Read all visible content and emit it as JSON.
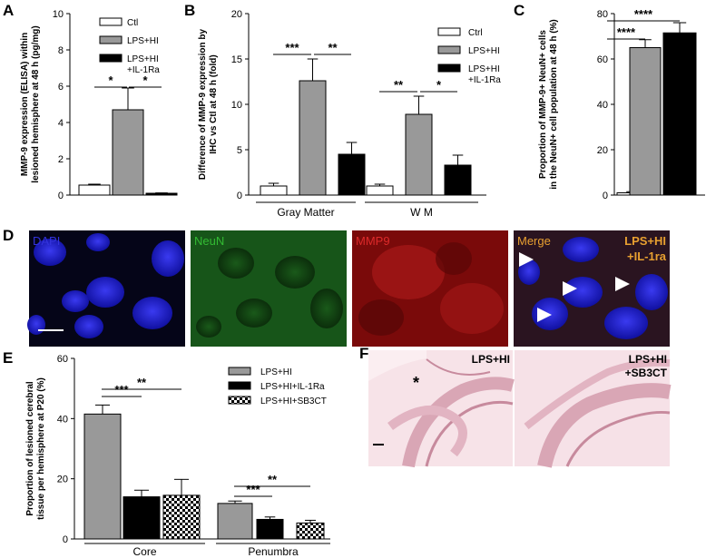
{
  "panel_labels": [
    "A",
    "B",
    "C",
    "D",
    "E",
    "F"
  ],
  "colors": {
    "ctl": "#ffffff",
    "lps_hi": "#999999",
    "il1ra": "#000000",
    "dapi": "#3333dd",
    "neun": "#33bb33",
    "mmp9": "#cc2222",
    "merge": "#e8a030",
    "he_bg": "#f5dde3"
  },
  "chart_data": [
    {
      "id": "A",
      "type": "bar",
      "ylabel": [
        "MMP-9 expression (ELISA) within",
        "lesioned hemisphere at 48 h (pg/mg)"
      ],
      "ylim": [
        0,
        10
      ],
      "yticks": [
        0,
        2,
        4,
        6,
        8,
        10
      ],
      "legend": [
        "Ctl",
        "LPS+HI",
        "LPS+HI\n+IL-1Ra"
      ],
      "series": [
        {
          "name": "Ctl",
          "value": 0.55,
          "err": 0.05
        },
        {
          "name": "LPS+HI",
          "value": 4.7,
          "err": 1.2
        },
        {
          "name": "LPS+HI\n+IL-1Ra",
          "value": 0.1,
          "err": 0.02
        }
      ],
      "significance": [
        "*",
        "*"
      ]
    },
    {
      "id": "B",
      "type": "bar",
      "ylabel": [
        "Difference of MMP-9 expression by",
        "IHC vs Ctl at 48 h (fold)"
      ],
      "ylim": [
        0,
        20
      ],
      "yticks": [
        0,
        5,
        10,
        15,
        20
      ],
      "legend": [
        "Ctrl",
        "LPS+HI",
        "LPS+HI\n+IL-1Ra"
      ],
      "categories": [
        "Gray Matter",
        "W M"
      ],
      "series": [
        {
          "name": "Ctrl",
          "values": [
            1,
            1
          ],
          "err": [
            0.3,
            0.2
          ]
        },
        {
          "name": "LPS+HI",
          "values": [
            12.6,
            8.9
          ],
          "err": [
            2.4,
            2.0
          ]
        },
        {
          "name": "LPS+HI\n+IL-1Ra",
          "values": [
            4.5,
            3.3
          ],
          "err": [
            1.3,
            1.1
          ]
        }
      ],
      "significance": [
        "***",
        "**",
        "**",
        "*"
      ]
    },
    {
      "id": "C",
      "type": "bar",
      "ylabel": [
        "Proportion of MMP-9+ NeuN+ cells",
        "in the NeuN+ cell population at 48 h (%)"
      ],
      "ylim": [
        0,
        80
      ],
      "yticks": [
        0,
        20,
        40,
        60,
        80
      ],
      "series": [
        {
          "value": 1,
          "err": 0.5
        },
        {
          "value": 65,
          "err": 3.5
        },
        {
          "value": 71.5,
          "err": 4.5
        }
      ],
      "significance": [
        "****",
        "****"
      ]
    },
    {
      "id": "E",
      "type": "bar",
      "ylabel": [
        "Proportion of lesioned cerebral",
        "tissue per hemisphere at P20 (%)"
      ],
      "ylim": [
        0,
        60
      ],
      "yticks": [
        0,
        20,
        40,
        60
      ],
      "legend": [
        "LPS+HI",
        "LPS+HI+IL-1Ra",
        "LPS+HI+SB3CT"
      ],
      "categories": [
        "Core",
        "Penumbra"
      ],
      "series": [
        {
          "name": "LPS+HI",
          "values": [
            41.5,
            11.8
          ],
          "err": [
            3.0,
            0.8
          ]
        },
        {
          "name": "LPS+HI+IL-1Ra",
          "values": [
            14,
            6.5
          ],
          "err": [
            2.2,
            0.8
          ]
        },
        {
          "name": "LPS+HI+SB3CT",
          "values": [
            14.5,
            5.3
          ],
          "err": [
            5.3,
            0.9
          ]
        }
      ],
      "significance": [
        "***",
        "**",
        "***",
        "**"
      ]
    }
  ],
  "micro": {
    "labels": [
      "DAPI",
      "NeuN",
      "MMP9",
      "Merge"
    ],
    "condition": [
      "LPS+HI",
      "+IL-1ra"
    ]
  },
  "histo": {
    "left": "LPS+HI",
    "star": "*",
    "right": [
      "LPS+HI",
      "+SB3CT"
    ]
  }
}
